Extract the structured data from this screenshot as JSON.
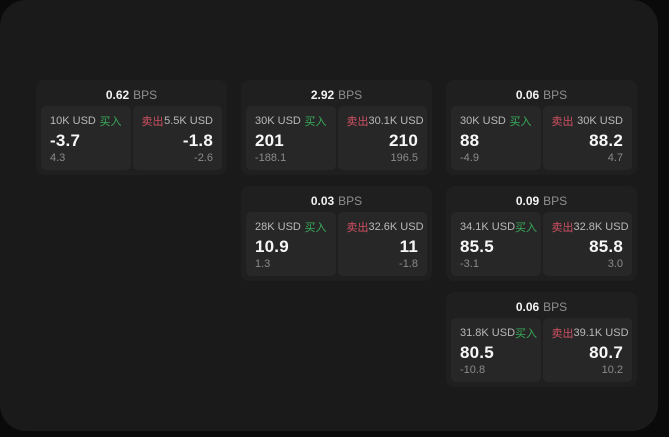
{
  "labels": {
    "bps": "BPS",
    "buy": "买入",
    "sell": "卖出"
  },
  "colors": {
    "background": "#0a0a0a",
    "surface": "#1a1a1a",
    "card": "#1f1f1f",
    "panel": "#272727",
    "buy_green": "#39ad5a",
    "sell_red": "#cf5062",
    "text_primary": "#f7f7f7",
    "text_secondary": "#b9b9b9",
    "text_muted": "#8a8a8a"
  },
  "cards": [
    {
      "bps": "0.62",
      "buy": {
        "amount": "10K USD",
        "price": "-3.7",
        "delta": "4.3"
      },
      "sell": {
        "amount": "5.5K USD",
        "price": "-1.8",
        "delta": "-2.6"
      }
    },
    {
      "bps": "2.92",
      "buy": {
        "amount": "30K USD",
        "price": "201",
        "delta": "-188.1"
      },
      "sell": {
        "amount": "30.1K USD",
        "price": "210",
        "delta": "196.5"
      }
    },
    {
      "bps": "0.06",
      "buy": {
        "amount": "30K USD",
        "price": "88",
        "delta": "-4.9"
      },
      "sell": {
        "amount": "30K USD",
        "price": "88.2",
        "delta": "4.7"
      }
    },
    {
      "bps": "0.03",
      "buy": {
        "amount": "28K USD",
        "price": "10.9",
        "delta": "1.3"
      },
      "sell": {
        "amount": "32.6K USD",
        "price": "11",
        "delta": "-1.8"
      }
    },
    {
      "bps": "0.09",
      "buy": {
        "amount": "34.1K USD",
        "price": "85.5",
        "delta": "-3.1"
      },
      "sell": {
        "amount": "32.8K USD",
        "price": "85.8",
        "delta": "3.0"
      }
    },
    {
      "bps": "0.06",
      "buy": {
        "amount": "31.8K USD",
        "price": "80.5",
        "delta": "-10.8"
      },
      "sell": {
        "amount": "39.1K USD",
        "price": "80.7",
        "delta": "10.2"
      }
    }
  ]
}
